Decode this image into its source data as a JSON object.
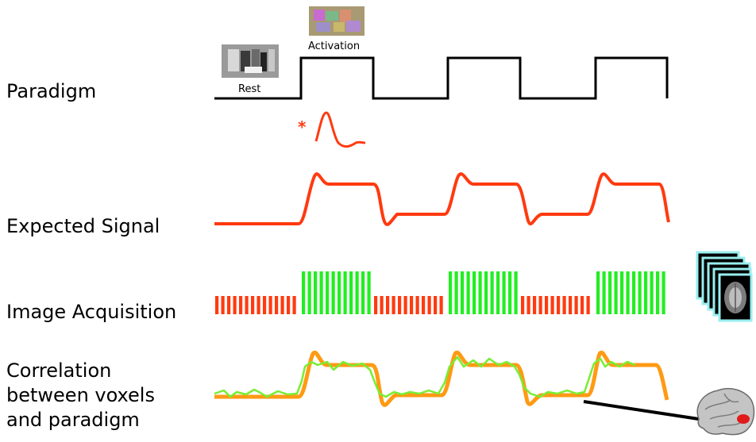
{
  "labels": {
    "paradigm": "Paradigm",
    "expected_signal": "Expected Signal",
    "image_acquisition": "Image Acquisition",
    "correlation": [
      "Correlation",
      "between voxels",
      "and paradigm"
    ]
  },
  "paradigm": {
    "rest_label": "Rest",
    "activation_label": "Activation",
    "blocks": [
      "rest",
      "activation",
      "rest",
      "activation",
      "rest",
      "activation"
    ]
  },
  "hrf_marker": "*",
  "colors": {
    "paradigm_line": "#000000",
    "signal": "#ff3a10",
    "acquisition_rest": "#ff3a10",
    "acquisition_active": "#22ee22",
    "correlation_model": "#ff9a14",
    "correlation_data": "#77ee33",
    "brain_highlight": "#e21a1a"
  },
  "icons": {
    "rest_image": "grayscale-brain-slice-thumbnail",
    "activation_image": "color-activation-map-thumbnail",
    "volume_stack": "fmri-volume-stack-icon",
    "brain": "brain-3d-icon"
  }
}
